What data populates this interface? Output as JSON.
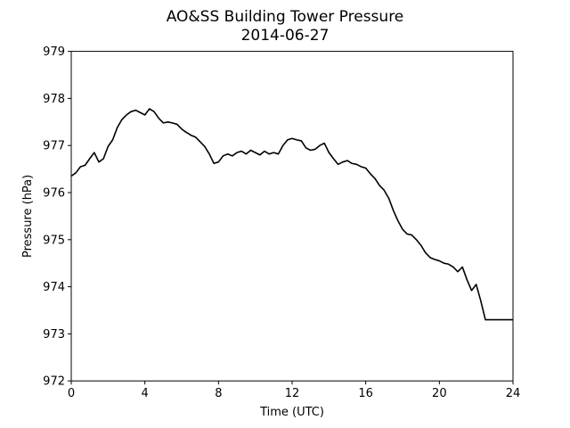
{
  "chart_data": {
    "type": "line",
    "title": "AO&SS Building Tower Pressure",
    "subtitle": "2014-06-27",
    "xlabel": "Time (UTC)",
    "ylabel": "Pressure (hPa)",
    "xlim": [
      0,
      24
    ],
    "ylim": [
      972,
      979
    ],
    "xticks": [
      "0",
      "4",
      "8",
      "12",
      "16",
      "20",
      "24"
    ],
    "yticks": [
      "972",
      "973",
      "974",
      "975",
      "976",
      "977",
      "978",
      "979"
    ],
    "grid": false,
    "legend": "none",
    "series": [
      {
        "color": "#000000",
        "x": [
          0,
          0.25,
          0.5,
          0.75,
          1.0,
          1.25,
          1.5,
          1.75,
          2.0,
          2.25,
          2.5,
          2.75,
          3.0,
          3.25,
          3.5,
          3.75,
          4.0,
          4.25,
          4.5,
          4.75,
          5.0,
          5.25,
          5.5,
          5.75,
          6.0,
          6.25,
          6.5,
          6.75,
          7.0,
          7.25,
          7.5,
          7.75,
          8.0,
          8.25,
          8.5,
          8.75,
          9.0,
          9.25,
          9.5,
          9.75,
          10.0,
          10.25,
          10.5,
          10.75,
          11.0,
          11.25,
          11.5,
          11.75,
          12.0,
          12.25,
          12.5,
          12.75,
          13.0,
          13.25,
          13.5,
          13.75,
          14.0,
          14.25,
          14.5,
          14.75,
          15.0,
          15.25,
          15.5,
          15.75,
          16.0,
          16.25,
          16.5,
          16.75,
          17.0,
          17.25,
          17.5,
          17.75,
          18.0,
          18.25,
          18.5,
          18.75,
          19.0,
          19.25,
          19.5,
          19.75,
          20.0,
          20.25,
          20.5,
          20.75,
          21.0,
          21.25,
          21.5,
          21.75,
          22.0,
          22.25,
          22.5,
          22.75,
          23.0,
          23.25,
          23.5,
          23.75,
          24.0
        ],
        "values": [
          976.35,
          976.42,
          976.55,
          976.58,
          976.72,
          976.85,
          976.65,
          976.72,
          976.98,
          977.12,
          977.38,
          977.55,
          977.65,
          977.72,
          977.75,
          977.7,
          977.65,
          977.78,
          977.72,
          977.58,
          977.48,
          977.5,
          977.48,
          977.45,
          977.35,
          977.28,
          977.22,
          977.18,
          977.08,
          976.98,
          976.82,
          976.62,
          976.65,
          976.78,
          976.82,
          976.78,
          976.85,
          976.88,
          976.82,
          976.9,
          976.85,
          976.8,
          976.88,
          976.82,
          976.85,
          976.82,
          977.0,
          977.12,
          977.15,
          977.12,
          977.1,
          976.95,
          976.9,
          976.92,
          977.0,
          977.05,
          976.85,
          976.72,
          976.6,
          976.65,
          976.68,
          976.62,
          976.6,
          976.55,
          976.52,
          976.4,
          976.3,
          976.15,
          976.05,
          975.88,
          975.62,
          975.4,
          975.22,
          975.12,
          975.1,
          975.0,
          974.88,
          974.72,
          974.62,
          974.58,
          974.55,
          974.5,
          974.48,
          974.42,
          974.32,
          974.42,
          974.15,
          973.92,
          974.05,
          973.7,
          973.3,
          973.3,
          973.3,
          973.3,
          973.3,
          973.3,
          973.3
        ]
      }
    ]
  }
}
